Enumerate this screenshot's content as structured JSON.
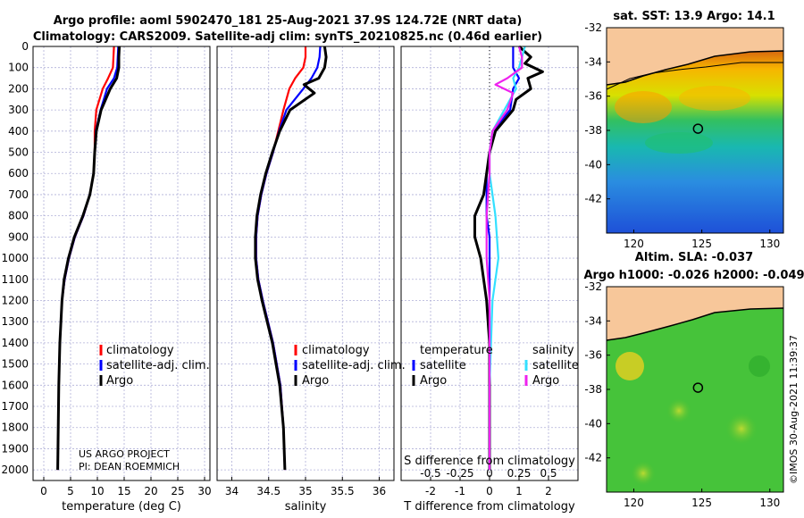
{
  "title_line1": "Argo profile: aoml 5902470_181 25-Aug-2021 37.9S 124.72E (NRT data)",
  "title_line2": "Climatology: CARS2009. Satellite-adj clim: synTS_20210825.nc (0.46d earlier)",
  "footer_project": "US ARGO PROJECT",
  "footer_pi": "PI: DEAN ROEMMICH",
  "timestamp": "©IMOS 30-Aug-2021 11:39:37",
  "colors": {
    "climatology": "#ff0000",
    "satellite": "#0000ff",
    "argo": "#000000",
    "sal_sat": "#33e0ff",
    "sal_argo": "#ee22ee"
  },
  "chart_data": [
    {
      "type": "line",
      "id": "temperature-profile",
      "xlabel": "temperature (deg C)",
      "ylabel": "depth",
      "xlim": [
        -2,
        31
      ],
      "ylim": [
        2050,
        0
      ],
      "xticks": [
        0,
        5,
        10,
        15,
        20,
        25,
        30
      ],
      "yticks": [
        0,
        100,
        200,
        300,
        400,
        500,
        600,
        700,
        800,
        900,
        1000,
        1100,
        1200,
        1300,
        1400,
        1500,
        1600,
        1700,
        1800,
        1900,
        2000
      ],
      "legend": [
        "climatology",
        "satellite-adj. clim.",
        "Argo"
      ],
      "series": [
        {
          "name": "climatology",
          "depth": [
            0,
            50,
            100,
            150,
            200,
            300,
            400,
            500,
            600,
            700,
            800,
            900,
            1000,
            1100,
            1200,
            1400,
            1600,
            1800,
            2000
          ],
          "values": [
            13.1,
            13.0,
            12.9,
            12.0,
            11.0,
            9.8,
            9.5,
            9.5,
            9.3,
            8.6,
            7.4,
            5.8,
            4.7,
            3.9,
            3.4,
            3.0,
            2.8,
            2.7,
            2.6
          ]
        },
        {
          "name": "satellite-adj. clim.",
          "depth": [
            0,
            50,
            100,
            150,
            200,
            300,
            400,
            500,
            600,
            700,
            800,
            900,
            1000,
            1100,
            1200,
            1400,
            1600,
            1800,
            2000
          ],
          "values": [
            13.9,
            13.8,
            13.7,
            13.1,
            11.8,
            10.6,
            9.7,
            9.5,
            9.3,
            8.6,
            7.4,
            5.8,
            4.7,
            3.9,
            3.4,
            3.0,
            2.8,
            2.7,
            2.6
          ]
        },
        {
          "name": "Argo",
          "depth": [
            0,
            50,
            100,
            150,
            200,
            300,
            400,
            500,
            600,
            700,
            800,
            900,
            1000,
            1100,
            1200,
            1400,
            1600,
            1800,
            2000
          ],
          "values": [
            14.1,
            14.0,
            14.0,
            13.6,
            12.4,
            10.7,
            9.8,
            9.5,
            9.3,
            8.6,
            7.3,
            5.7,
            4.6,
            3.8,
            3.4,
            3.0,
            2.8,
            2.7,
            2.6
          ]
        }
      ]
    },
    {
      "type": "line",
      "id": "salinity-profile",
      "xlabel": "salinity",
      "ylabel": "depth",
      "xlim": [
        33.8,
        36.2
      ],
      "ylim": [
        2050,
        0
      ],
      "xticks": [
        34,
        34.5,
        35,
        35.5,
        36
      ],
      "legend": [
        "climatology",
        "satellite-adj. clim.",
        "Argo"
      ],
      "series": [
        {
          "name": "climatology",
          "depth": [
            0,
            50,
            100,
            150,
            200,
            300,
            400,
            500,
            600,
            700,
            800,
            900,
            1000,
            1100,
            1200,
            1400,
            1600,
            1800,
            2000
          ],
          "values": [
            35.0,
            35.0,
            34.97,
            34.86,
            34.78,
            34.7,
            34.63,
            34.56,
            34.47,
            34.4,
            34.35,
            34.33,
            34.33,
            34.36,
            34.42,
            34.56,
            34.66,
            34.7,
            34.72
          ]
        },
        {
          "name": "satellite-adj. clim.",
          "depth": [
            0,
            50,
            100,
            150,
            200,
            300,
            400,
            500,
            600,
            700,
            800,
            900,
            1000,
            1100,
            1200,
            1400,
            1600,
            1800,
            2000
          ],
          "values": [
            35.2,
            35.19,
            35.16,
            35.08,
            34.97,
            34.74,
            34.64,
            34.56,
            34.47,
            34.4,
            34.35,
            34.33,
            34.33,
            34.36,
            34.42,
            34.56,
            34.66,
            34.7,
            34.72
          ]
        },
        {
          "name": "Argo",
          "depth": [
            0,
            50,
            100,
            150,
            180,
            220,
            300,
            400,
            500,
            600,
            700,
            800,
            900,
            1000,
            1100,
            1200,
            1400,
            1600,
            1800,
            2000
          ],
          "values": [
            35.26,
            35.28,
            35.26,
            35.18,
            34.98,
            35.12,
            34.79,
            34.65,
            34.55,
            34.46,
            34.39,
            34.34,
            34.32,
            34.32,
            34.35,
            34.41,
            34.55,
            34.65,
            34.7,
            34.72
          ]
        }
      ]
    },
    {
      "type": "line",
      "id": "difference-profile",
      "xlabel": "T difference from climatology",
      "xlabel_top": "S difference from climatology",
      "xlim": [
        -3,
        3
      ],
      "ylim": [
        2050,
        0
      ],
      "xticks": [
        -2,
        -1,
        0,
        1,
        2
      ],
      "s_ticks": [
        "-0.5",
        "-0.25",
        "0",
        "0.25",
        "0.5"
      ],
      "legend_temperature_title": "temperature",
      "legend_salinity_title": "salinity",
      "legend_satellite": "satellite",
      "legend_argo": "Argo",
      "series": [
        {
          "name": "T satellite",
          "depth": [
            0,
            50,
            100,
            150,
            200,
            300,
            400,
            500,
            600,
            700,
            800,
            900,
            1000,
            1200,
            1600,
            2000
          ],
          "values": [
            0.8,
            0.8,
            0.8,
            1.0,
            0.8,
            0.7,
            0.1,
            0.0,
            -0.1,
            -0.1,
            -0.1,
            0.0,
            0.0,
            0.0,
            0.0,
            0.0
          ]
        },
        {
          "name": "T Argo",
          "depth": [
            0,
            50,
            80,
            120,
            150,
            200,
            250,
            300,
            400,
            500,
            600,
            700,
            800,
            900,
            1000,
            1100,
            1200,
            1400,
            1600,
            2000
          ],
          "values": [
            1.0,
            1.4,
            1.2,
            1.8,
            1.3,
            1.4,
            0.9,
            0.8,
            0.2,
            0.0,
            -0.1,
            -0.2,
            -0.5,
            -0.5,
            -0.3,
            -0.2,
            -0.1,
            0.0,
            0.0,
            0.0
          ]
        },
        {
          "name": "S satellite",
          "depth": [
            0,
            50,
            100,
            150,
            200,
            300,
            400,
            500,
            600,
            800,
            1000,
            1200,
            1600,
            2000
          ],
          "values": [
            1.2,
            1.1,
            1.0,
            0.8,
            0.9,
            0.5,
            0.1,
            0.0,
            0.0,
            0.2,
            0.3,
            0.1,
            0.0,
            0.0
          ]
        },
        {
          "name": "S Argo",
          "depth": [
            0,
            50,
            100,
            150,
            180,
            220,
            300,
            400,
            500,
            600,
            800,
            1000,
            1200,
            1600,
            2000
          ],
          "values": [
            1.0,
            1.1,
            1.1,
            0.6,
            0.2,
            0.8,
            0.6,
            0.1,
            0.0,
            0.0,
            -0.1,
            -0.1,
            0.0,
            0.0,
            0.0
          ]
        }
      ]
    },
    {
      "type": "heatmap",
      "id": "sst-map",
      "title": "sat. SST: 13.9 Argo: 14.1",
      "xlim": [
        118,
        131
      ],
      "ylim": [
        -44,
        -32
      ],
      "xticks": [
        120,
        125,
        130
      ],
      "yticks": [
        -32,
        -34,
        -36,
        -38,
        -40,
        -42
      ],
      "profile_location": {
        "lon": 124.72,
        "lat": -37.9
      }
    },
    {
      "type": "heatmap",
      "id": "sla-map",
      "title_line1": "Altim. SLA: -0.037",
      "title_line2": "Argo h1000: -0.026 h2000: -0.049",
      "xlim": [
        118,
        131
      ],
      "ylim": [
        -44,
        -32
      ],
      "xticks": [
        120,
        125,
        130
      ],
      "yticks": [
        -32,
        -34,
        -36,
        -38,
        -40,
        -42
      ],
      "profile_location": {
        "lon": 124.72,
        "lat": -37.9
      }
    }
  ]
}
